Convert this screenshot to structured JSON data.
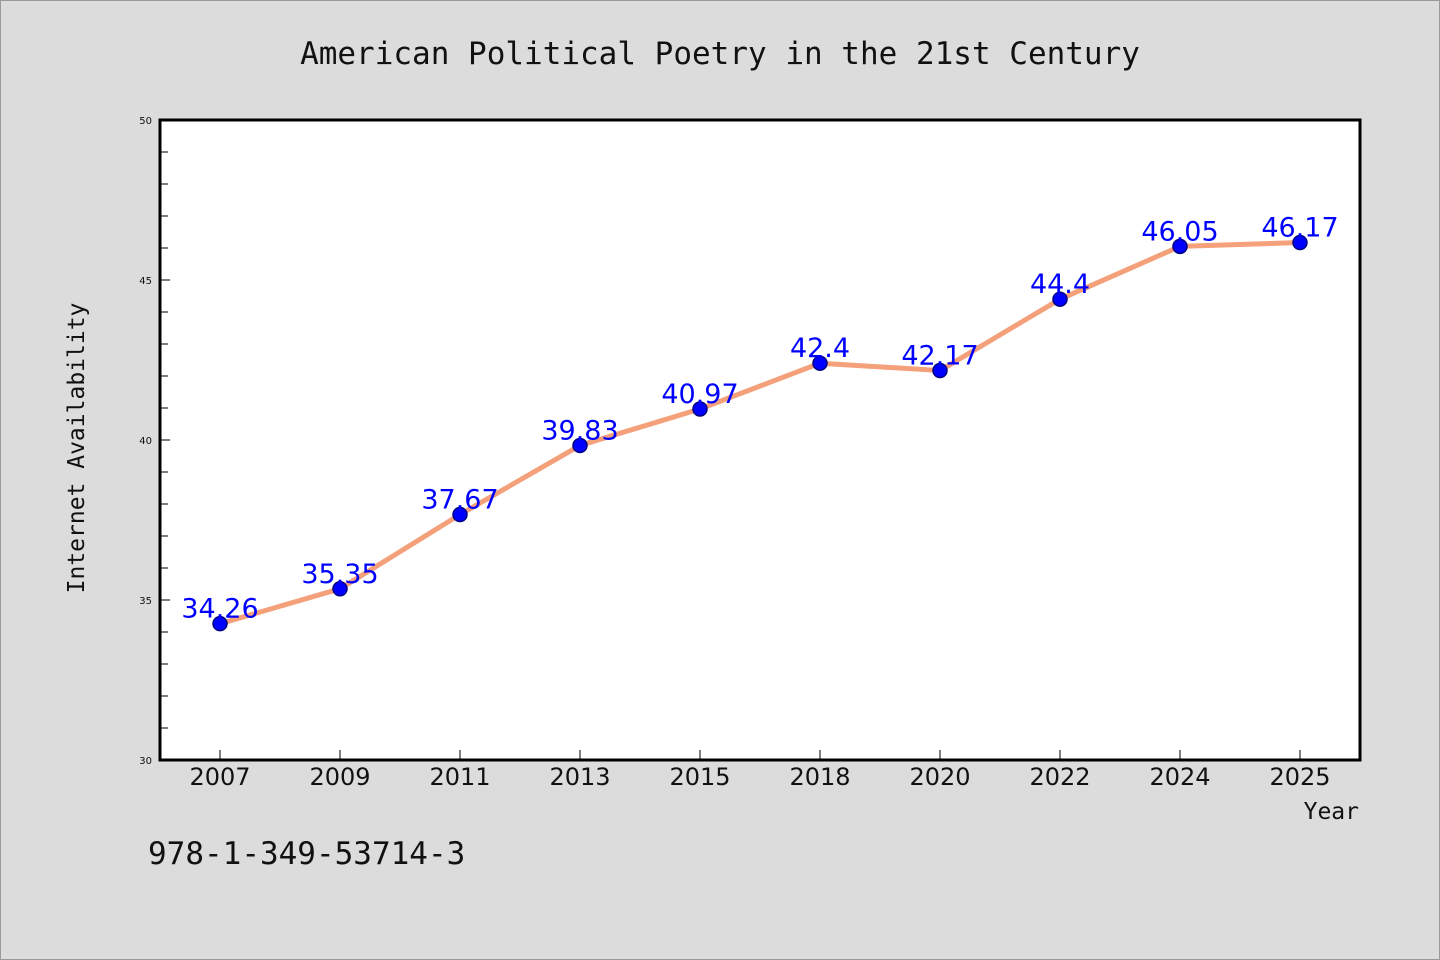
{
  "colors": {
    "background": "#dcdcdc",
    "plot_background": "#ffffff",
    "line": "#f4a07a",
    "marker_fill": "#0000ff",
    "marker_edge": "#000080",
    "data_label": "#0000ff",
    "axis": "#000000"
  },
  "footer": {
    "isbn": "978-1-349-53714-3"
  },
  "chart_data": {
    "type": "line",
    "title": "American Political Poetry in the 21st Century",
    "xlabel": "Year",
    "ylabel": "Internet Availability",
    "categories": [
      "2007",
      "2009",
      "2011",
      "2013",
      "2015",
      "2018",
      "2020",
      "2022",
      "2024",
      "2025"
    ],
    "series": [
      {
        "values": [
          34.26,
          35.35,
          37.67,
          39.83,
          40.97,
          42.4,
          42.17,
          44.4,
          46.05,
          46.17
        ],
        "labels": [
          "34.26",
          "35.35",
          "37.67",
          "39.83",
          "40.97",
          "42.4",
          "42.17",
          "44.4",
          "46.05",
          "46.17"
        ]
      }
    ],
    "ylim": [
      30,
      50
    ],
    "yticks": [
      "30",
      "35",
      "40",
      "45",
      "50"
    ],
    "grid": false,
    "legend": "none"
  }
}
